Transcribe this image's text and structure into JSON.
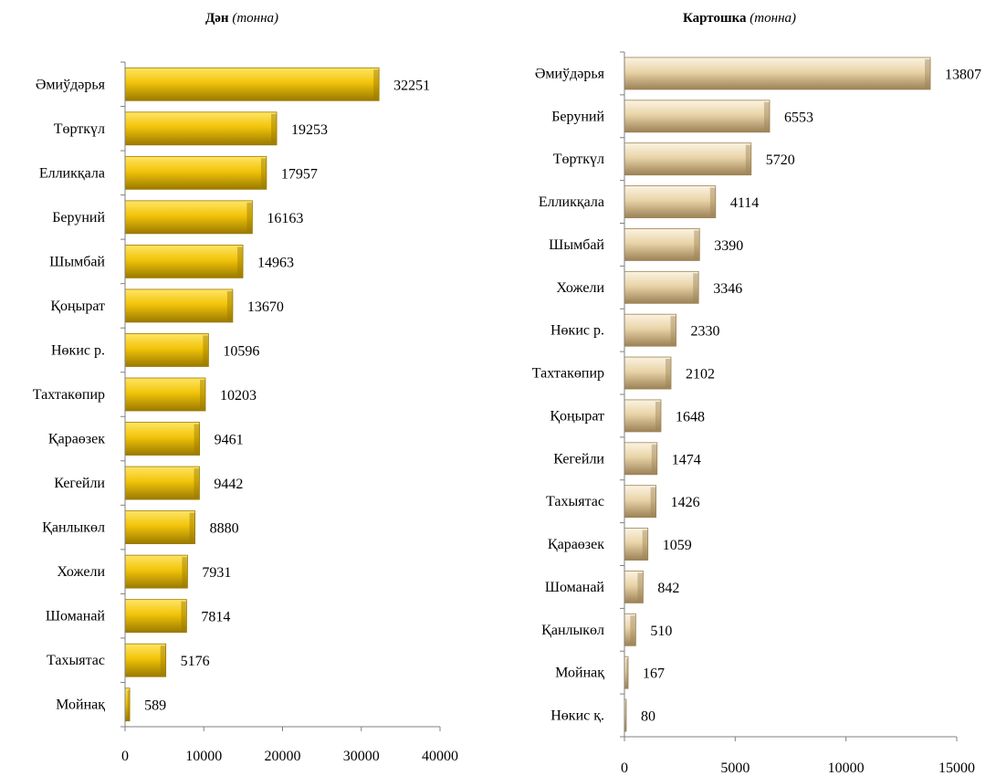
{
  "colors": {
    "left_bar_light": "#ffe566",
    "left_bar": "#f2c40a",
    "left_bar_dark": "#9a7a00",
    "right_bar_light": "#fbf3e2",
    "right_bar": "#e9d4a8",
    "right_bar_dark": "#9c8256",
    "axis": "#808080"
  },
  "chart_data": [
    {
      "type": "bar",
      "orientation": "horizontal",
      "title_bold": "Дән",
      "title_italic": "(тонна)",
      "categories": [
        "Әмиўдәрья",
        "Төрткүл",
        "Елликқала",
        "Беруний",
        "Шымбай",
        "Қоңырат",
        "Нөкис р.",
        "Тахтакөпир",
        "Қараөзек",
        "Кегейли",
        "Қанлыкөл",
        "Хожели",
        "Шоманай",
        "Тахыятас",
        "Мойнақ"
      ],
      "values": [
        32251,
        19253,
        17957,
        16163,
        14963,
        13670,
        10596,
        10203,
        9461,
        9442,
        8880,
        7931,
        7814,
        5176,
        589
      ],
      "xlim": [
        0,
        40000
      ],
      "ticks": [
        "0",
        "10000",
        "20000",
        "30000",
        "40000"
      ],
      "data_labels": [
        "32251",
        "19253",
        "17957",
        "16163",
        "14963",
        "13670",
        "10596",
        "10203",
        "9461",
        "9442",
        "8880",
        "7931",
        "7814",
        "5176",
        "589"
      ],
      "grid": false
    },
    {
      "type": "bar",
      "orientation": "horizontal",
      "title_bold": "Картошка",
      "title_italic": "(тонна)",
      "categories": [
        "Әмиўдәрья",
        "Беруний",
        "Төрткүл",
        "Елликқала",
        "Шымбай",
        "Хожели",
        "Нөкис р.",
        "Тахтакөпир",
        "Қоңырат",
        "Кегейли",
        "Тахыятас",
        "Қараөзек",
        "Шоманай",
        "Қанлыкөл",
        "Мойнақ",
        "Нөкис қ."
      ],
      "values": [
        13807,
        6553,
        5720,
        4114,
        3390,
        3346,
        2330,
        2102,
        1648,
        1474,
        1426,
        1059,
        842,
        510,
        167,
        80
      ],
      "xlim": [
        0,
        15000
      ],
      "ticks": [
        "0",
        "5000",
        "10000",
        "15000"
      ],
      "data_labels": [
        "13807",
        "6553",
        "5720",
        "4114",
        "3390",
        "3346",
        "2330",
        "2102",
        "1648",
        "1474",
        "1426",
        "1059",
        "842",
        "510",
        "167",
        "80"
      ],
      "grid": false
    }
  ]
}
